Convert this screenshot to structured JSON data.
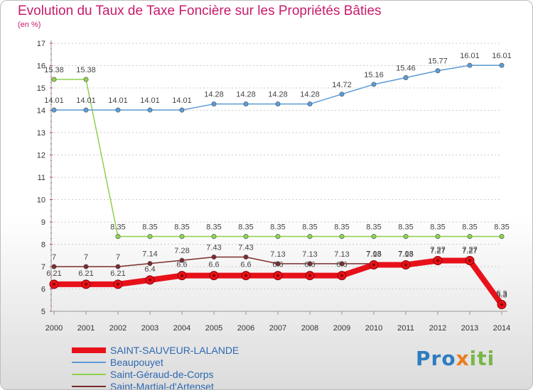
{
  "title": "Evolution du Taux de Taxe Foncière sur les Propriétés Bâties",
  "subtitle": "(en %)",
  "logo": {
    "part1": "Pro",
    "part2": "x",
    "part3": "iti"
  },
  "colors": {
    "title": "#c71b6c",
    "grid": "#cccccc",
    "axis": "#999999"
  },
  "chart_data": {
    "type": "line",
    "title": "Evolution du Taux de Taxe Foncière sur les Propriétés Bâties",
    "ylabel": "(en %)",
    "xlabel": "",
    "ylim": [
      5,
      17
    ],
    "yticks": [
      5,
      6,
      7,
      8,
      9,
      10,
      11,
      12,
      13,
      14,
      15,
      16,
      17
    ],
    "x": [
      "2000",
      "2001",
      "2002",
      "2003",
      "2004",
      "2005",
      "2006",
      "2007",
      "2008",
      "2009",
      "2010",
      "2011",
      "2012",
      "2013",
      "2014"
    ],
    "grid": "horizontal dashed",
    "series": [
      {
        "name": "SAINT-SAUVEUR-LALANDE",
        "color": "#e8111a",
        "style": "thick",
        "values": [
          6.21,
          6.21,
          6.21,
          6.4,
          6.6,
          6.6,
          6.6,
          6.6,
          6.6,
          6.6,
          7.08,
          7.08,
          7.27,
          7.27,
          5.3
        ],
        "labels": [
          "6.21",
          "6.21",
          "6.21",
          "6.4",
          "6.6",
          "6.6",
          "6.6",
          "6.6",
          "6.6",
          "6.6",
          "7.08",
          "7.08",
          "7.27",
          "7.27",
          "5.3"
        ]
      },
      {
        "name": "Beaupouyet",
        "color": "#5b9bd5",
        "style": "thin",
        "values": [
          14.01,
          14.01,
          14.01,
          14.01,
          14.01,
          14.28,
          14.28,
          14.28,
          14.28,
          14.72,
          15.16,
          15.46,
          15.77,
          16.01,
          16.01
        ],
        "labels": [
          "14.01",
          "14.01",
          "14.01",
          "14.01",
          "14.01",
          "14.28",
          "14.28",
          "14.28",
          "14.28",
          "14.72",
          "15.16",
          "15.46",
          "15.77",
          "16.01",
          "16.01"
        ]
      },
      {
        "name": "Saint-Géraud-de-Corps",
        "color": "#8fd14f",
        "style": "thin",
        "values": [
          15.38,
          15.38,
          8.35,
          8.35,
          8.35,
          8.35,
          8.35,
          8.35,
          8.35,
          8.35,
          8.35,
          8.35,
          8.35,
          8.35,
          8.35
        ],
        "labels": [
          "15.38",
          "15.38",
          "8.35",
          "8.35",
          "8.35",
          "8.35",
          "8.35",
          "8.35",
          "8.35",
          "8.35",
          "8.35",
          "8.35",
          "8.35",
          "8.35",
          "8.35"
        ]
      },
      {
        "name": "Saint-Martial-d'Artenset",
        "color": "#7b2c2c",
        "style": "thin",
        "values": [
          7,
          7,
          7,
          7.14,
          7.28,
          7.43,
          7.43,
          7.13,
          7.13,
          7.13,
          7.13,
          7.13,
          7.27,
          7.27,
          5.3
        ],
        "labels": [
          "7",
          "7",
          "7",
          "7.14",
          "7.28",
          "7.43",
          "7.43",
          "7.13",
          "7.13",
          "7.13",
          "7.13",
          "7.13",
          "7.27",
          "7.27",
          "5.3"
        ]
      }
    ],
    "legend": "bottom-left"
  }
}
